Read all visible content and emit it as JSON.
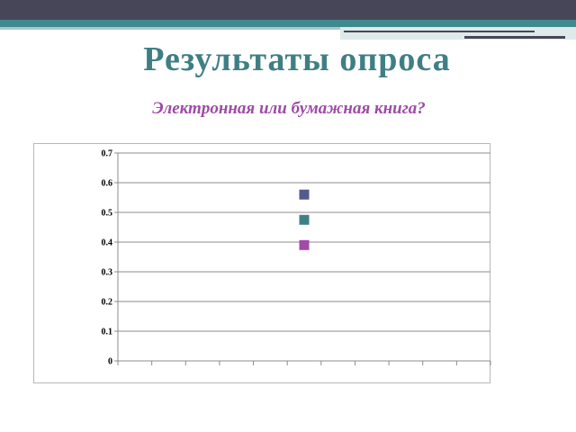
{
  "slide": {
    "title": "Результаты опроса",
    "subtitle": "Электронная или бумажная книга?"
  },
  "colors": {
    "title": "#3f7f84",
    "subtitle": "#9e4aa6",
    "band_dark": "#474659",
    "band_teal": "#3f8a8f"
  },
  "chart_data": {
    "type": "scatter",
    "title": "",
    "xlabel": "",
    "ylabel": "",
    "ylim": [
      0,
      0.7
    ],
    "ytick_labels": [
      "0",
      "0.1",
      "0.2",
      "0.3",
      "0.4",
      "0.5",
      "0.6",
      "0.7"
    ],
    "x_category_count": 11,
    "grid": true,
    "legend": "none",
    "series": [
      {
        "x": 6,
        "y": 0.56,
        "color": "#535a8c"
      },
      {
        "x": 6,
        "y": 0.475,
        "color": "#3f8085"
      },
      {
        "x": 6,
        "y": 0.39,
        "color": "#a24aa8"
      }
    ]
  }
}
